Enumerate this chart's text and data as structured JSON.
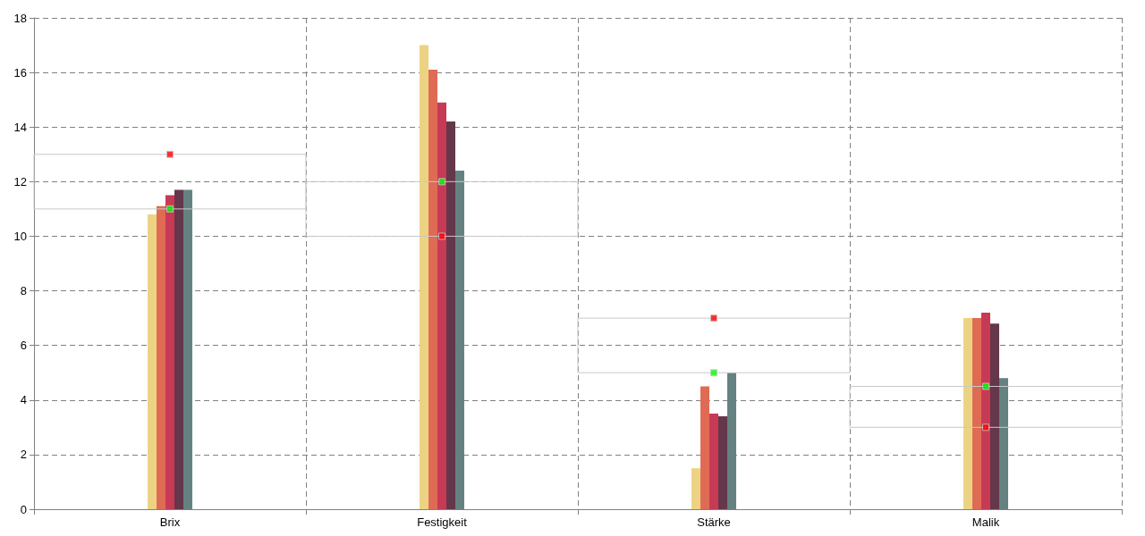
{
  "chart_data": {
    "type": "bar",
    "categories": [
      "Brix",
      "Festigkeit",
      "Stärke",
      "Malik"
    ],
    "series": [
      {
        "color": "#ecd384",
        "values": [
          10.8,
          17.0,
          1.5,
          7.0
        ]
      },
      {
        "color": "#df6b55",
        "values": [
          11.1,
          16.1,
          4.5,
          7.0
        ]
      },
      {
        "color": "#c73a55",
        "values": [
          11.5,
          14.9,
          3.5,
          7.2
        ]
      },
      {
        "color": "#64374a",
        "values": [
          11.7,
          14.2,
          3.4,
          6.8
        ]
      },
      {
        "color": "#658282",
        "values": [
          11.7,
          12.4,
          5.0,
          4.8
        ]
      },
      {
        "type": "scatter",
        "x": [
          "Brix",
          "Festigkeit",
          "Stärke",
          "Malik"
        ],
        "colors": [
          "#ff0000",
          "#00ff00",
          "#ff0000",
          "#00ff00"
        ],
        "values": [
          13,
          12,
          7,
          4.5
        ]
      },
      {
        "type": "scatter",
        "x": [
          "Brix",
          "Festigkeit",
          "Stärke",
          "Malik"
        ],
        "colors": [
          "#00ff00",
          "#ff0000",
          "#00ff00",
          "#ff0000"
        ],
        "values": [
          11,
          10,
          5,
          3
        ]
      }
    ],
    "ylim": [
      0,
      18
    ],
    "yticks": [
      0,
      2,
      4,
      6,
      8,
      10,
      12,
      14,
      16,
      18
    ],
    "grid": true,
    "marker": "square"
  }
}
